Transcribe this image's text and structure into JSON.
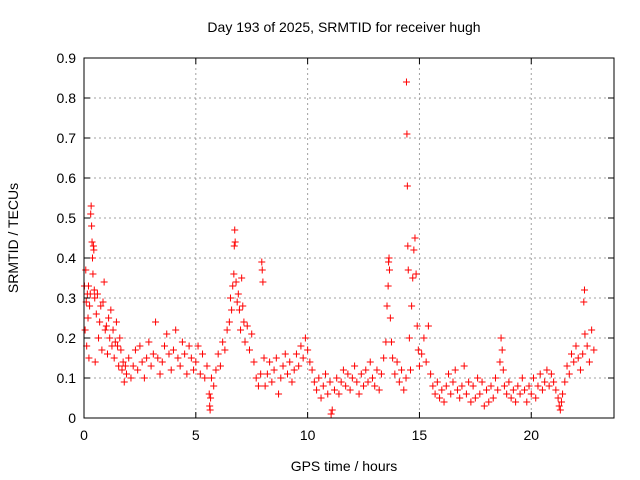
{
  "chart_data": {
    "type": "scatter",
    "title": "Day 193 of 2025, SRMTID for receiver hugh",
    "xlabel": "GPS time / hours",
    "ylabel": "SRMTID / TECUs",
    "xlim": [
      0,
      23.7
    ],
    "ylim": [
      0,
      0.9
    ],
    "xticks": [
      0,
      5,
      10,
      15,
      20
    ],
    "xtick_labels": [
      "0",
      "5",
      "10",
      "15",
      "20"
    ],
    "yticks": [
      0,
      0.1,
      0.2,
      0.3,
      0.4,
      0.5,
      0.6,
      0.7,
      0.8,
      0.9
    ],
    "ytick_labels": [
      "0",
      "0.1",
      "0.2",
      "0.3",
      "0.4",
      "0.5",
      "0.6",
      "0.7",
      "0.8",
      "0.9"
    ],
    "grid": true,
    "marker": "+",
    "color": "#ff0000",
    "series": [
      {
        "name": "SRMTID",
        "points": [
          [
            0.02,
            0.33
          ],
          [
            0.05,
            0.22
          ],
          [
            0.08,
            0.37
          ],
          [
            0.1,
            0.29
          ],
          [
            0.12,
            0.18
          ],
          [
            0.15,
            0.31
          ],
          [
            0.18,
            0.25
          ],
          [
            0.2,
            0.33
          ],
          [
            0.22,
            0.15
          ],
          [
            0.25,
            0.28
          ],
          [
            0.28,
            0.31
          ],
          [
            0.3,
            0.51
          ],
          [
            0.32,
            0.53
          ],
          [
            0.34,
            0.48
          ],
          [
            0.36,
            0.44
          ],
          [
            0.38,
            0.4
          ],
          [
            0.4,
            0.36
          ],
          [
            0.42,
            0.43
          ],
          [
            0.44,
            0.42
          ],
          [
            0.46,
            0.32
          ],
          [
            0.48,
            0.3
          ],
          [
            0.5,
            0.14
          ],
          [
            0.55,
            0.26
          ],
          [
            0.6,
            0.31
          ],
          [
            0.65,
            0.2
          ],
          [
            0.7,
            0.24
          ],
          [
            0.75,
            0.28
          ],
          [
            0.8,
            0.17
          ],
          [
            0.85,
            0.29
          ],
          [
            0.9,
            0.34
          ],
          [
            0.95,
            0.22
          ],
          [
            1.0,
            0.23
          ],
          [
            1.05,
            0.16
          ],
          [
            1.1,
            0.25
          ],
          [
            1.15,
            0.2
          ],
          [
            1.2,
            0.27
          ],
          [
            1.25,
            0.18
          ],
          [
            1.3,
            0.22
          ],
          [
            1.35,
            0.15
          ],
          [
            1.4,
            0.19
          ],
          [
            1.45,
            0.24
          ],
          [
            1.5,
            0.18
          ],
          [
            1.55,
            0.13
          ],
          [
            1.6,
            0.2
          ],
          [
            1.65,
            0.17
          ],
          [
            1.7,
            0.12
          ],
          [
            1.75,
            0.14
          ],
          [
            1.8,
            0.09
          ],
          [
            1.85,
            0.13
          ],
          [
            1.9,
            0.11
          ],
          [
            2.0,
            0.15
          ],
          [
            2.1,
            0.1
          ],
          [
            2.2,
            0.13
          ],
          [
            2.3,
            0.17
          ],
          [
            2.4,
            0.12
          ],
          [
            2.5,
            0.18
          ],
          [
            2.6,
            0.14
          ],
          [
            2.7,
            0.1
          ],
          [
            2.8,
            0.15
          ],
          [
            2.9,
            0.19
          ],
          [
            3.0,
            0.13
          ],
          [
            3.1,
            0.16
          ],
          [
            3.2,
            0.24
          ],
          [
            3.3,
            0.15
          ],
          [
            3.4,
            0.11
          ],
          [
            3.5,
            0.14
          ],
          [
            3.6,
            0.18
          ],
          [
            3.7,
            0.21
          ],
          [
            3.8,
            0.16
          ],
          [
            3.9,
            0.12
          ],
          [
            4.0,
            0.17
          ],
          [
            4.1,
            0.22
          ],
          [
            4.2,
            0.15
          ],
          [
            4.3,
            0.13
          ],
          [
            4.4,
            0.19
          ],
          [
            4.5,
            0.16
          ],
          [
            4.6,
            0.11
          ],
          [
            4.7,
            0.18
          ],
          [
            4.8,
            0.15
          ],
          [
            4.9,
            0.12
          ],
          [
            5.0,
            0.14
          ],
          [
            5.1,
            0.18
          ],
          [
            5.2,
            0.11
          ],
          [
            5.3,
            0.16
          ],
          [
            5.4,
            0.1
          ],
          [
            5.5,
            0.13
          ],
          [
            5.6,
            0.06
          ],
          [
            5.62,
            0.03
          ],
          [
            5.64,
            0.02
          ],
          [
            5.66,
            0.05
          ],
          [
            5.7,
            0.1
          ],
          [
            5.8,
            0.08
          ],
          [
            5.9,
            0.12
          ],
          [
            6.0,
            0.16
          ],
          [
            6.1,
            0.13
          ],
          [
            6.2,
            0.19
          ],
          [
            6.3,
            0.17
          ],
          [
            6.4,
            0.22
          ],
          [
            6.5,
            0.24
          ],
          [
            6.55,
            0.3
          ],
          [
            6.6,
            0.27
          ],
          [
            6.65,
            0.33
          ],
          [
            6.7,
            0.36
          ],
          [
            6.72,
            0.43
          ],
          [
            6.74,
            0.47
          ],
          [
            6.76,
            0.44
          ],
          [
            6.8,
            0.34
          ],
          [
            6.85,
            0.29
          ],
          [
            6.9,
            0.31
          ],
          [
            6.95,
            0.27
          ],
          [
            7.0,
            0.22
          ],
          [
            7.05,
            0.35
          ],
          [
            7.1,
            0.28
          ],
          [
            7.15,
            0.24
          ],
          [
            7.2,
            0.19
          ],
          [
            7.3,
            0.23
          ],
          [
            7.4,
            0.17
          ],
          [
            7.5,
            0.21
          ],
          [
            7.6,
            0.14
          ],
          [
            7.7,
            0.1
          ],
          [
            7.8,
            0.08
          ],
          [
            7.9,
            0.11
          ],
          [
            7.95,
            0.39
          ],
          [
            7.97,
            0.37
          ],
          [
            8.0,
            0.34
          ],
          [
            8.05,
            0.15
          ],
          [
            8.1,
            0.08
          ],
          [
            8.2,
            0.11
          ],
          [
            8.3,
            0.14
          ],
          [
            8.4,
            0.09
          ],
          [
            8.5,
            0.12
          ],
          [
            8.6,
            0.15
          ],
          [
            8.7,
            0.06
          ],
          [
            8.8,
            0.1
          ],
          [
            8.9,
            0.13
          ],
          [
            9.0,
            0.16
          ],
          [
            9.1,
            0.11
          ],
          [
            9.2,
            0.14
          ],
          [
            9.3,
            0.09
          ],
          [
            9.4,
            0.12
          ],
          [
            9.5,
            0.16
          ],
          [
            9.6,
            0.13
          ],
          [
            9.7,
            0.18
          ],
          [
            9.8,
            0.15
          ],
          [
            9.9,
            0.2
          ],
          [
            10.0,
            0.17
          ],
          [
            10.1,
            0.14
          ],
          [
            10.2,
            0.12
          ],
          [
            10.3,
            0.09
          ],
          [
            10.4,
            0.07
          ],
          [
            10.5,
            0.1
          ],
          [
            10.6,
            0.05
          ],
          [
            10.7,
            0.08
          ],
          [
            10.8,
            0.11
          ],
          [
            10.9,
            0.06
          ],
          [
            11.0,
            0.09
          ],
          [
            11.05,
            0.01
          ],
          [
            11.1,
            0.02
          ],
          [
            11.2,
            0.07
          ],
          [
            11.3,
            0.1
          ],
          [
            11.4,
            0.06
          ],
          [
            11.5,
            0.09
          ],
          [
            11.6,
            0.12
          ],
          [
            11.7,
            0.08
          ],
          [
            11.8,
            0.11
          ],
          [
            11.9,
            0.07
          ],
          [
            12.0,
            0.1
          ],
          [
            12.1,
            0.13
          ],
          [
            12.2,
            0.09
          ],
          [
            12.3,
            0.06
          ],
          [
            12.4,
            0.11
          ],
          [
            12.5,
            0.08
          ],
          [
            12.6,
            0.12
          ],
          [
            12.7,
            0.09
          ],
          [
            12.8,
            0.14
          ],
          [
            12.9,
            0.1
          ],
          [
            13.0,
            0.08
          ],
          [
            13.1,
            0.12
          ],
          [
            13.2,
            0.07
          ],
          [
            13.3,
            0.11
          ],
          [
            13.4,
            0.15
          ],
          [
            13.5,
            0.19
          ],
          [
            13.55,
            0.28
          ],
          [
            13.6,
            0.33
          ],
          [
            13.62,
            0.39
          ],
          [
            13.64,
            0.4
          ],
          [
            13.66,
            0.37
          ],
          [
            13.7,
            0.25
          ],
          [
            13.75,
            0.19
          ],
          [
            13.8,
            0.15
          ],
          [
            13.9,
            0.11
          ],
          [
            14.0,
            0.14
          ],
          [
            14.1,
            0.09
          ],
          [
            14.2,
            0.12
          ],
          [
            14.3,
            0.07
          ],
          [
            14.4,
            0.1
          ],
          [
            14.42,
            0.84
          ],
          [
            14.44,
            0.71
          ],
          [
            14.46,
            0.58
          ],
          [
            14.48,
            0.43
          ],
          [
            14.5,
            0.37
          ],
          [
            14.55,
            0.2
          ],
          [
            14.6,
            0.12
          ],
          [
            14.65,
            0.28
          ],
          [
            14.7,
            0.35
          ],
          [
            14.75,
            0.42
          ],
          [
            14.8,
            0.45
          ],
          [
            14.85,
            0.36
          ],
          [
            14.9,
            0.23
          ],
          [
            14.95,
            0.17
          ],
          [
            15.0,
            0.13
          ],
          [
            15.1,
            0.16
          ],
          [
            15.2,
            0.2
          ],
          [
            15.3,
            0.14
          ],
          [
            15.4,
            0.23
          ],
          [
            15.5,
            0.11
          ],
          [
            15.6,
            0.08
          ],
          [
            15.7,
            0.06
          ],
          [
            15.8,
            0.09
          ],
          [
            15.9,
            0.05
          ],
          [
            16.0,
            0.07
          ],
          [
            16.1,
            0.04
          ],
          [
            16.2,
            0.08
          ],
          [
            16.3,
            0.11
          ],
          [
            16.4,
            0.06
          ],
          [
            16.5,
            0.09
          ],
          [
            16.6,
            0.12
          ],
          [
            16.7,
            0.07
          ],
          [
            16.8,
            0.05
          ],
          [
            16.9,
            0.08
          ],
          [
            17.0,
            0.13
          ],
          [
            17.1,
            0.06
          ],
          [
            17.2,
            0.09
          ],
          [
            17.3,
            0.04
          ],
          [
            17.4,
            0.08
          ],
          [
            17.5,
            0.05
          ],
          [
            17.6,
            0.1
          ],
          [
            17.7,
            0.06
          ],
          [
            17.8,
            0.09
          ],
          [
            17.9,
            0.03
          ],
          [
            18.0,
            0.07
          ],
          [
            18.1,
            0.04
          ],
          [
            18.2,
            0.08
          ],
          [
            18.3,
            0.05
          ],
          [
            18.4,
            0.1
          ],
          [
            18.5,
            0.07
          ],
          [
            18.6,
            0.14
          ],
          [
            18.65,
            0.2
          ],
          [
            18.7,
            0.17
          ],
          [
            18.75,
            0.12
          ],
          [
            18.8,
            0.08
          ],
          [
            18.9,
            0.06
          ],
          [
            19.0,
            0.09
          ],
          [
            19.1,
            0.05
          ],
          [
            19.2,
            0.07
          ],
          [
            19.3,
            0.04
          ],
          [
            19.4,
            0.08
          ],
          [
            19.5,
            0.06
          ],
          [
            19.6,
            0.1
          ],
          [
            19.7,
            0.07
          ],
          [
            19.8,
            0.04
          ],
          [
            19.9,
            0.08
          ],
          [
            20.0,
            0.06
          ],
          [
            20.1,
            0.1
          ],
          [
            20.2,
            0.05
          ],
          [
            20.3,
            0.08
          ],
          [
            20.4,
            0.11
          ],
          [
            20.5,
            0.07
          ],
          [
            20.6,
            0.09
          ],
          [
            20.7,
            0.12
          ],
          [
            20.8,
            0.08
          ],
          [
            20.9,
            0.11
          ],
          [
            21.0,
            0.09
          ],
          [
            21.1,
            0.07
          ],
          [
            21.2,
            0.05
          ],
          [
            21.25,
            0.03
          ],
          [
            21.3,
            0.02
          ],
          [
            21.35,
            0.04
          ],
          [
            21.4,
            0.06
          ],
          [
            21.5,
            0.09
          ],
          [
            21.6,
            0.13
          ],
          [
            21.7,
            0.11
          ],
          [
            21.8,
            0.16
          ],
          [
            21.9,
            0.14
          ],
          [
            22.0,
            0.18
          ],
          [
            22.1,
            0.15
          ],
          [
            22.2,
            0.12
          ],
          [
            22.3,
            0.16
          ],
          [
            22.35,
            0.29
          ],
          [
            22.38,
            0.32
          ],
          [
            22.4,
            0.21
          ],
          [
            22.5,
            0.18
          ],
          [
            22.6,
            0.14
          ],
          [
            22.7,
            0.22
          ],
          [
            22.8,
            0.17
          ]
        ]
      }
    ]
  }
}
